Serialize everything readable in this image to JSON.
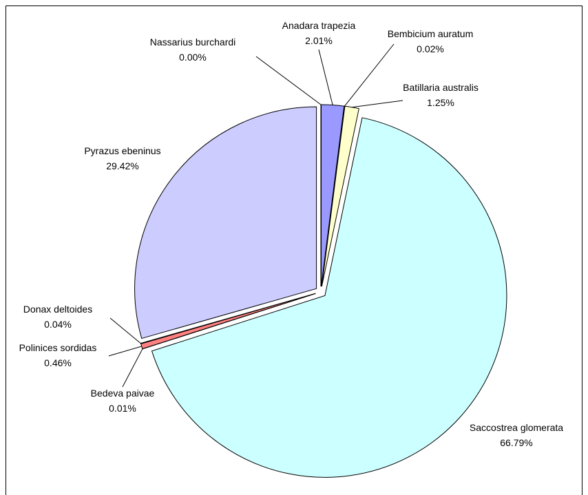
{
  "chart_data": {
    "type": "pie",
    "categories": [
      "Anadara trapezia",
      "Bembicium auratum",
      "Batillaria australis",
      "Saccostrea glomerata",
      "Bedeva paivae",
      "Polinices sordidas",
      "Donax deltoides",
      "Pyrazus ebeninus",
      "Nassarius burchardi"
    ],
    "values": [
      2.01,
      0.02,
      1.25,
      66.79,
      0.01,
      0.46,
      0.04,
      29.42,
      0.0
    ],
    "value_labels": [
      "2.01%",
      "0.02%",
      "1.25%",
      "66.79%",
      "0.01%",
      "0.46%",
      "0.04%",
      "29.42%",
      "0.00%"
    ],
    "colors": [
      "#9999ff",
      "#993366",
      "#ffffcc",
      "#ccffff",
      "#660066",
      "#ff8080",
      "#0066cc",
      "#ccccff",
      "#000080"
    ]
  }
}
